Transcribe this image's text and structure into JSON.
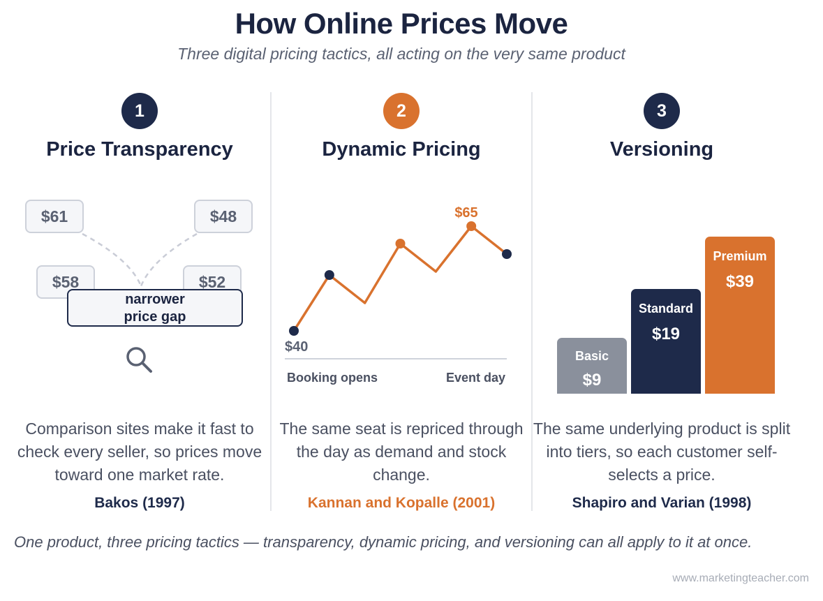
{
  "header": {
    "title": "How Online Prices Move",
    "subtitle": "Three digital pricing tactics, all acting on the very same product"
  },
  "columns": [
    {
      "number": "1",
      "title": "Price Transparency",
      "description": "Comparison sites make it fast to check every seller, so prices move toward one market rate.",
      "citation": "Bakos (1997)",
      "tiles": [
        "$61",
        "$48",
        "$58",
        "$52"
      ],
      "gap_label_line1": "narrower",
      "gap_label_line2": "price gap",
      "icon": "magnifier-icon"
    },
    {
      "number": "2",
      "title": "Dynamic Pricing",
      "description": "The same seat is repriced through the day as demand and stock change.",
      "citation": "Kannan and Kopalle (2001)",
      "start_label": "$40",
      "peak_label": "$65",
      "x_start_label": "Booking opens",
      "x_end_label": "Event day"
    },
    {
      "number": "3",
      "title": "Versioning",
      "description": "The same underlying product is split into tiers, so each customer self-selects a price.",
      "citation": "Shapiro and Varian (1998)",
      "tiers": [
        {
          "name": "Basic",
          "price": "$9"
        },
        {
          "name": "Standard",
          "price": "$19"
        },
        {
          "name": "Premium",
          "price": "$39"
        }
      ]
    }
  ],
  "chart_data": {
    "type": "line",
    "x": [
      0,
      1,
      2,
      3,
      4,
      5,
      6
    ],
    "series": [
      {
        "values": [
          40,
          56,
          48,
          65,
          57,
          70,
          62
        ]
      }
    ],
    "labels": [
      "$40",
      "$65"
    ],
    "xlabel_start": "Booking opens",
    "xlabel_end": "Event day"
  },
  "footer": {
    "note": "One product, three pricing tactics — transparency, dynamic pricing, and versioning can all apply to it at once.",
    "watermark": "www.marketingteacher.com"
  },
  "colors": {
    "navy": "#1e2a4a",
    "orange": "#d9722e",
    "gray": "#8a909c"
  }
}
